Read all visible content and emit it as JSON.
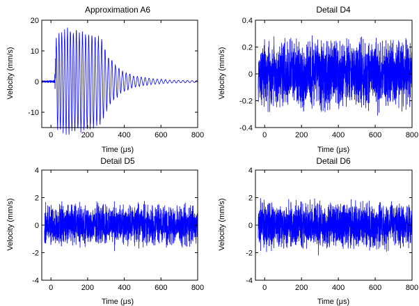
{
  "chart_data": [
    {
      "type": "line",
      "title": "Approximation A6",
      "xlabel": "Time (μs)",
      "ylabel": "Velocity  (mm/s)",
      "xlim": [
        -50,
        800
      ],
      "ylim": [
        -15,
        20
      ],
      "xticks": [
        0,
        200,
        400,
        600,
        800
      ],
      "yticks": [
        20,
        10,
        0,
        -10
      ],
      "color": "#0000ff",
      "grid": false,
      "signal": "decaying oscillation: starts near x=25, peak amplitude about 18 mm/s around x=100-150, decays to near 0 after x=500",
      "series": [
        {
          "name": "",
          "envelope": [
            {
              "x": -50,
              "amp": 0.3
            },
            {
              "x": 20,
              "amp": 0.5
            },
            {
              "x": 30,
              "amp": 16
            },
            {
              "x": 90,
              "amp": 18
            },
            {
              "x": 160,
              "amp": 17
            },
            {
              "x": 270,
              "amp": 15
            },
            {
              "x": 310,
              "amp": 9
            },
            {
              "x": 380,
              "amp": 4
            },
            {
              "x": 450,
              "amp": 2
            },
            {
              "x": 550,
              "amp": 1
            },
            {
              "x": 650,
              "amp": 0.5
            },
            {
              "x": 800,
              "amp": 0.3
            }
          ]
        }
      ]
    },
    {
      "type": "line",
      "title": "Detail D4",
      "xlabel": "Time (μs)",
      "ylabel": "Velocity  (mm/s)",
      "xlim": [
        -50,
        800
      ],
      "ylim": [
        -0.4,
        0.4
      ],
      "xticks": [
        0,
        200,
        400,
        600,
        800
      ],
      "yticks": [
        0.4,
        0.2,
        0,
        -0.2,
        -0.4
      ],
      "color": "#0000ff",
      "grid": false,
      "signal": "dense noise, amplitude about 0.3 mm/s across the full window",
      "series": [
        {
          "name": "",
          "amplitude": 0.3
        }
      ]
    },
    {
      "type": "line",
      "title": "Detail D5",
      "xlabel": "Time (μs)",
      "ylabel": "Velocity  (mm/s)",
      "xlim": [
        -50,
        800
      ],
      "ylim": [
        -4,
        4
      ],
      "xticks": [
        0,
        200,
        400,
        600,
        800
      ],
      "yticks": [
        4,
        2,
        0,
        -2,
        -4
      ],
      "color": "#0000ff",
      "grid": false,
      "signal": "dense noise, amplitude about 1.8 mm/s",
      "series": [
        {
          "name": "",
          "amplitude": 1.8
        }
      ]
    },
    {
      "type": "line",
      "title": "Detail D6",
      "xlabel": "Time (μs)",
      "ylabel": "Velocity  (mm/s)",
      "xlim": [
        -50,
        800
      ],
      "ylim": [
        -4,
        4
      ],
      "xticks": [
        0,
        200,
        400,
        600,
        800
      ],
      "yticks": [
        4,
        2,
        0,
        -2,
        -4
      ],
      "color": "#0000ff",
      "grid": false,
      "signal": "dense noise, amplitude about 2.0 mm/s",
      "series": [
        {
          "name": "",
          "amplitude": 2.0
        }
      ]
    }
  ]
}
